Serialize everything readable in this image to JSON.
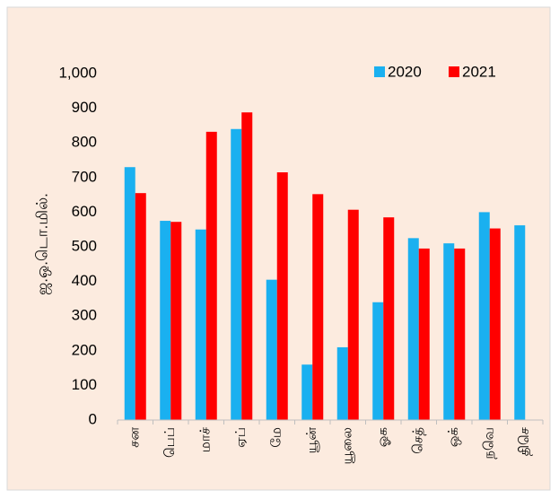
{
  "chart_data": {
    "type": "bar",
    "y_label": "ஜ.ஒ.டொ.மில்.",
    "categories": [
      "சன",
      "பெப்",
      "மாச்",
      "ஏப்",
      "மே",
      "யூன்",
      "யூலை",
      "ஓக",
      "செத்",
      "ஒக்",
      "நவெ",
      "திசெ"
    ],
    "series": [
      {
        "name": "2020",
        "color": "#1ab0f0",
        "values": [
          730,
          575,
          550,
          840,
          405,
          160,
          210,
          340,
          525,
          510,
          600,
          562
        ]
      },
      {
        "name": "2021",
        "color": "#ff0000",
        "values": [
          655,
          572,
          832,
          888,
          715,
          652,
          607,
          585,
          495,
          495,
          553,
          null
        ]
      }
    ],
    "ylim": [
      0,
      1000
    ],
    "yticks": [
      0,
      100,
      200,
      300,
      400,
      500,
      600,
      700,
      800,
      900,
      {
        "value": 1000,
        "label": "1,000"
      }
    ],
    "grid": false,
    "legend": "top-right"
  }
}
